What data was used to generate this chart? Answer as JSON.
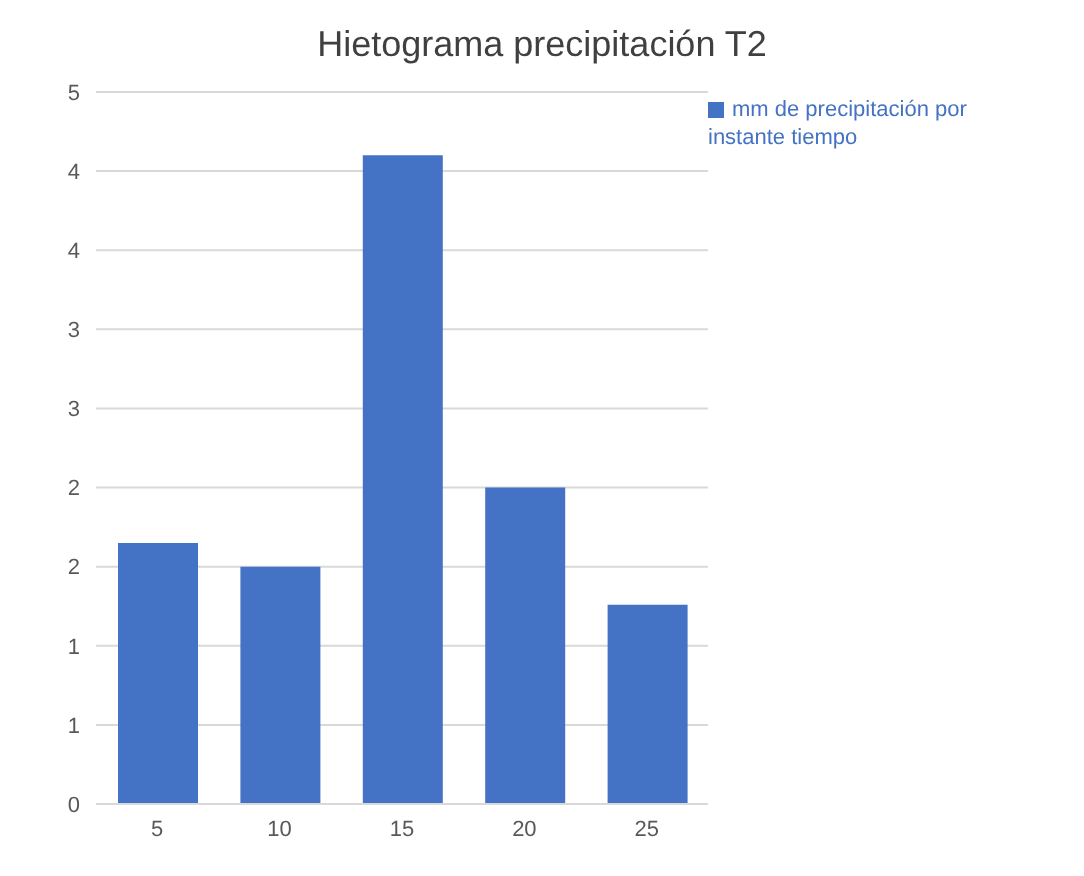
{
  "chart_data": {
    "type": "bar",
    "title": "Hietograma precipitación T2",
    "categories": [
      "5",
      "10",
      "15",
      "20",
      "25"
    ],
    "series": [
      {
        "name": "mm de precipitación por instante tiempo",
        "color": "#4472c4",
        "values": [
          1.65,
          1.5,
          4.1,
          2.0,
          1.26
        ]
      }
    ],
    "ylim": [
      0,
      4.5
    ],
    "yticks": [
      {
        "value": 0,
        "label": "0"
      },
      {
        "value": 0.5,
        "label": "1"
      },
      {
        "value": 1,
        "label": "1"
      },
      {
        "value": 1.5,
        "label": "2"
      },
      {
        "value": 2,
        "label": "2"
      },
      {
        "value": 2.5,
        "label": "3"
      },
      {
        "value": 3,
        "label": "3"
      },
      {
        "value": 3.5,
        "label": "4"
      },
      {
        "value": 4,
        "label": "4"
      },
      {
        "value": 4.5,
        "label": "5"
      }
    ],
    "grid": "y",
    "legend": "top right"
  }
}
